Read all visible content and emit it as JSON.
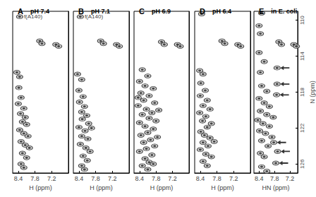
{
  "chart_data": [
    {
      "type": "scatter",
      "title": "A",
      "subtitle": "pH 7.4",
      "x_label": "H (ppm)",
      "xlim": [
        8.6,
        6.6
      ],
      "ylim": [
        127,
        109
      ],
      "xticks": [
        8.4,
        7.8,
        7.2
      ],
      "tick_labels": "x",
      "grid": false,
      "annotations": [
        {
          "text": "f(A140)",
          "x": 8.35,
          "y": 109.6
        }
      ],
      "series": [
        {
          "color": "#222222",
          "marker": "contour",
          "values": [
            [
              8.35,
              109.6
            ],
            [
              7.63,
              112.3
            ],
            [
              7.55,
              112.6
            ],
            [
              7.05,
              112.7
            ],
            [
              6.95,
              112.9
            ],
            [
              8.45,
              115.8
            ],
            [
              8.35,
              116.3
            ],
            [
              8.38,
              117.5
            ],
            [
              8.3,
              118.6
            ],
            [
              8.4,
              119.3
            ],
            [
              8.2,
              119.8
            ],
            [
              8.32,
              120.4
            ],
            [
              8.15,
              120.8
            ],
            [
              8.25,
              121.3
            ],
            [
              8.1,
              121.6
            ],
            [
              8.35,
              122.2
            ],
            [
              8.2,
              122.6
            ],
            [
              8.05,
              122.9
            ],
            [
              8.3,
              123.5
            ],
            [
              8.15,
              123.9
            ],
            [
              8.0,
              124.2
            ],
            [
              8.25,
              124.8
            ],
            [
              8.1,
              125.3
            ],
            [
              8.3,
              126.0
            ],
            [
              8.2,
              126.4
            ]
          ]
        }
      ]
    },
    {
      "type": "scatter",
      "title": "B",
      "subtitle": "pH 7.1",
      "x_label": "H (ppm)",
      "xlim": [
        8.6,
        6.6
      ],
      "ylim": [
        127,
        109
      ],
      "xticks": [
        8.4,
        7.8,
        7.2
      ],
      "tick_labels": "x",
      "grid": false,
      "annotations": [
        {
          "text": "f(A140)",
          "x": 8.35,
          "y": 109.6
        }
      ],
      "series": [
        {
          "color": "#222222",
          "marker": "contour",
          "values": [
            [
              8.35,
              109.6
            ],
            [
              7.62,
              112.3
            ],
            [
              7.52,
              112.6
            ],
            [
              7.05,
              112.7
            ],
            [
              6.95,
              112.9
            ],
            [
              8.45,
              116.0
            ],
            [
              8.3,
              116.6
            ],
            [
              8.4,
              117.8
            ],
            [
              8.25,
              118.5
            ],
            [
              8.38,
              119.1
            ],
            [
              8.2,
              119.6
            ],
            [
              8.3,
              120.2
            ],
            [
              8.12,
              120.6
            ],
            [
              8.28,
              121.0
            ],
            [
              8.05,
              121.5
            ],
            [
              8.4,
              121.9
            ],
            [
              8.18,
              122.3
            ],
            [
              8.3,
              122.9
            ],
            [
              8.08,
              123.2
            ],
            [
              8.35,
              123.8
            ],
            [
              8.15,
              124.2
            ],
            [
              8.0,
              124.6
            ],
            [
              8.25,
              125.1
            ],
            [
              8.1,
              125.6
            ],
            [
              8.3,
              126.2
            ],
            [
              8.2,
              126.6
            ],
            [
              7.95,
              122.0
            ]
          ]
        }
      ]
    },
    {
      "type": "scatter",
      "title": "C",
      "subtitle": "pH 6.9",
      "x_label": "H (ppm)",
      "xlim": [
        8.6,
        6.6
      ],
      "ylim": [
        127,
        109
      ],
      "xticks": [
        8.4,
        7.8,
        7.2
      ],
      "tick_labels": "x",
      "grid": false,
      "series": [
        {
          "color": "#222222",
          "marker": "contour",
          "values": [
            [
              7.6,
              112.4
            ],
            [
              7.5,
              112.7
            ],
            [
              7.02,
              112.7
            ],
            [
              6.92,
              112.9
            ],
            [
              8.3,
              115.5
            ],
            [
              8.1,
              116.2
            ],
            [
              8.4,
              116.8
            ],
            [
              8.2,
              117.3
            ],
            [
              7.9,
              117.6
            ],
            [
              8.35,
              118.1
            ],
            [
              8.05,
              118.4
            ],
            [
              8.25,
              118.9
            ],
            [
              7.85,
              119.2
            ],
            [
              8.45,
              119.5
            ],
            [
              8.15,
              119.9
            ],
            [
              7.95,
              120.3
            ],
            [
              8.3,
              120.5
            ],
            [
              8.05,
              120.9
            ],
            [
              7.8,
              121.2
            ],
            [
              8.4,
              121.4
            ],
            [
              8.2,
              121.8
            ],
            [
              7.9,
              122.1
            ],
            [
              8.1,
              122.5
            ],
            [
              8.35,
              122.8
            ],
            [
              7.75,
              123.0
            ],
            [
              8.0,
              123.3
            ],
            [
              8.25,
              123.6
            ],
            [
              7.85,
              124.0
            ],
            [
              8.15,
              124.3
            ],
            [
              8.4,
              124.6
            ],
            [
              7.95,
              125.0
            ],
            [
              8.2,
              125.4
            ],
            [
              8.05,
              125.8
            ],
            [
              8.3,
              126.2
            ],
            [
              8.1,
              126.6
            ],
            [
              7.9,
              126.0
            ],
            [
              8.45,
              118.6
            ],
            [
              7.7,
              120.0
            ]
          ]
        }
      ]
    },
    {
      "type": "scatter",
      "title": "D",
      "subtitle": "pH 6.4",
      "x_label": "H (ppm)",
      "xlim": [
        8.6,
        6.6
      ],
      "ylim": [
        127,
        109
      ],
      "xticks": [
        8.4,
        7.8,
        7.2
      ],
      "tick_labels": "x",
      "grid": false,
      "series": [
        {
          "color": "#222222",
          "marker": "contour",
          "values": [
            [
              8.35,
              109.3
            ],
            [
              7.62,
              112.3
            ],
            [
              7.52,
              112.6
            ],
            [
              7.05,
              112.7
            ],
            [
              6.95,
              112.9
            ],
            [
              8.42,
              115.6
            ],
            [
              8.3,
              116.0
            ],
            [
              8.38,
              117.0
            ],
            [
              8.22,
              117.8
            ],
            [
              8.4,
              118.4
            ],
            [
              8.15,
              118.9
            ],
            [
              8.3,
              119.5
            ],
            [
              8.05,
              119.9
            ],
            [
              8.42,
              120.3
            ],
            [
              8.2,
              120.7
            ],
            [
              8.32,
              121.2
            ],
            [
              8.0,
              121.5
            ],
            [
              8.15,
              121.9
            ],
            [
              8.38,
              122.4
            ],
            [
              8.25,
              122.8
            ],
            [
              8.05,
              123.1
            ],
            [
              8.3,
              123.6
            ],
            [
              8.12,
              124.0
            ],
            [
              8.4,
              124.4
            ],
            [
              8.2,
              124.9
            ],
            [
              8.0,
              125.2
            ],
            [
              8.3,
              125.7
            ],
            [
              8.15,
              126.2
            ],
            [
              7.9,
              123.5
            ]
          ]
        }
      ]
    },
    {
      "type": "scatter",
      "title": "E",
      "subtitle": "in E. coli",
      "x_label": "HN (ppm)",
      "y_label": "N (ppm)",
      "xlim": [
        8.6,
        6.9
      ],
      "ylim": [
        127,
        109
      ],
      "xticks": [
        8.4,
        7.8,
        7.2
      ],
      "yticks": [
        110,
        114,
        118,
        122,
        126
      ],
      "tick_labels": true,
      "grid": false,
      "arrows": [
        [
          7.7,
          115.3
        ],
        [
          7.7,
          117.1
        ],
        [
          7.72,
          118.3
        ],
        [
          7.83,
          123.6
        ],
        [
          7.68,
          124.6
        ],
        [
          7.75,
          125.9
        ]
      ],
      "series": [
        {
          "color": "#222222",
          "marker": "contour",
          "values": [
            [
              8.3,
              109.2
            ],
            [
              8.4,
              110.6
            ],
            [
              8.35,
              111.5
            ],
            [
              7.63,
              112.4
            ],
            [
              7.53,
              112.7
            ],
            [
              7.05,
              112.7
            ],
            [
              6.95,
              112.9
            ],
            [
              8.4,
              113.6
            ],
            [
              8.2,
              114.6
            ],
            [
              7.7,
              115.3
            ],
            [
              8.35,
              115.8
            ],
            [
              7.7,
              117.1
            ],
            [
              8.3,
              117.3
            ],
            [
              8.1,
              117.9
            ],
            [
              7.72,
              118.3
            ],
            [
              8.4,
              118.7
            ],
            [
              8.2,
              119.2
            ],
            [
              8.0,
              119.6
            ],
            [
              8.35,
              120.1
            ],
            [
              8.1,
              120.5
            ],
            [
              7.85,
              120.8
            ],
            [
              8.45,
              121.1
            ],
            [
              8.25,
              121.5
            ],
            [
              8.0,
              121.8
            ],
            [
              8.38,
              122.3
            ],
            [
              8.15,
              122.6
            ],
            [
              7.9,
              123.0
            ],
            [
              8.3,
              123.4
            ],
            [
              7.83,
              123.6
            ],
            [
              8.05,
              124.0
            ],
            [
              7.68,
              124.6
            ],
            [
              8.35,
              124.8
            ],
            [
              8.2,
              125.2
            ],
            [
              7.75,
              125.9
            ],
            [
              8.3,
              126.3
            ],
            [
              8.1,
              126.8
            ]
          ]
        }
      ]
    }
  ]
}
